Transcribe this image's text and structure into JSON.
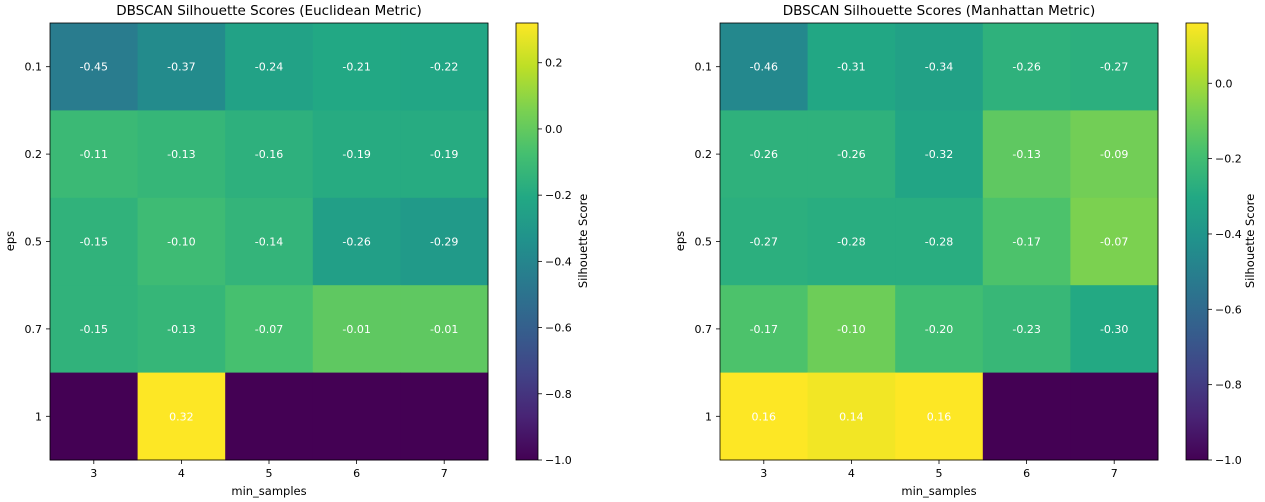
{
  "chart_data": [
    {
      "type": "heatmap",
      "title": "DBSCAN Silhouette Scores (Euclidean Metric)",
      "xlabel": "min_samples",
      "ylabel": "eps",
      "x_categories": [
        "3",
        "4",
        "5",
        "6",
        "7"
      ],
      "y_categories": [
        "0.1",
        "0.2",
        "0.5",
        "0.7",
        "1"
      ],
      "values": [
        [
          -0.45,
          -0.37,
          -0.24,
          -0.21,
          -0.22
        ],
        [
          -0.11,
          -0.13,
          -0.16,
          -0.19,
          -0.19
        ],
        [
          -0.15,
          -0.1,
          -0.14,
          -0.26,
          -0.29
        ],
        [
          -0.15,
          -0.13,
          -0.07,
          -0.01,
          -0.01
        ],
        [
          -1.0,
          0.32,
          -1.0,
          -1.0,
          -1.0
        ]
      ],
      "cell_labels": [
        [
          "-0.45",
          "-0.37",
          "-0.24",
          "-0.21",
          "-0.22"
        ],
        [
          "-0.11",
          "-0.13",
          "-0.16",
          "-0.19",
          "-0.19"
        ],
        [
          "-0.15",
          "-0.10",
          "-0.14",
          "-0.26",
          "-0.29"
        ],
        [
          "-0.15",
          "-0.13",
          "-0.07",
          "-0.01",
          "-0.01"
        ],
        [
          "",
          "0.32",
          "",
          "",
          ""
        ]
      ],
      "colorbar": {
        "label": "Silhouette Score",
        "colormap": "viridis",
        "vmin": -1.0,
        "vmax": 0.32,
        "ticks": [
          -1.0,
          -0.8,
          -0.6,
          -0.4,
          -0.2,
          0.0,
          0.2
        ],
        "tick_labels": [
          "−1.0",
          "−0.8",
          "−0.6",
          "−0.4",
          "−0.2",
          "0.0",
          "0.2"
        ]
      }
    },
    {
      "type": "heatmap",
      "title": "DBSCAN Silhouette Scores (Manhattan Metric)",
      "xlabel": "min_samples",
      "ylabel": "eps",
      "x_categories": [
        "3",
        "4",
        "5",
        "6",
        "7"
      ],
      "y_categories": [
        "0.1",
        "0.2",
        "0.5",
        "0.7",
        "1"
      ],
      "values": [
        [
          -0.46,
          -0.31,
          -0.34,
          -0.26,
          -0.27
        ],
        [
          -0.26,
          -0.26,
          -0.32,
          -0.13,
          -0.09
        ],
        [
          -0.27,
          -0.28,
          -0.28,
          -0.17,
          -0.07
        ],
        [
          -0.17,
          -0.1,
          -0.2,
          -0.23,
          -0.3
        ],
        [
          0.16,
          0.14,
          0.16,
          -1.0,
          -1.0
        ]
      ],
      "cell_labels": [
        [
          "-0.46",
          "-0.31",
          "-0.34",
          "-0.26",
          "-0.27"
        ],
        [
          "-0.26",
          "-0.26",
          "-0.32",
          "-0.13",
          "-0.09"
        ],
        [
          "-0.27",
          "-0.28",
          "-0.28",
          "-0.17",
          "-0.07"
        ],
        [
          "-0.17",
          "-0.10",
          "-0.20",
          "-0.23",
          "-0.30"
        ],
        [
          "0.16",
          "0.14",
          "0.16",
          "",
          ""
        ]
      ],
      "colorbar": {
        "label": "Silhouette Score",
        "colormap": "viridis",
        "vmin": -1.0,
        "vmax": 0.16,
        "ticks": [
          -1.0,
          -0.8,
          -0.6,
          -0.4,
          -0.2,
          0.0
        ],
        "tick_labels": [
          "−1.0",
          "−0.8",
          "−0.6",
          "−0.4",
          "−0.2",
          "0.0"
        ]
      }
    }
  ]
}
